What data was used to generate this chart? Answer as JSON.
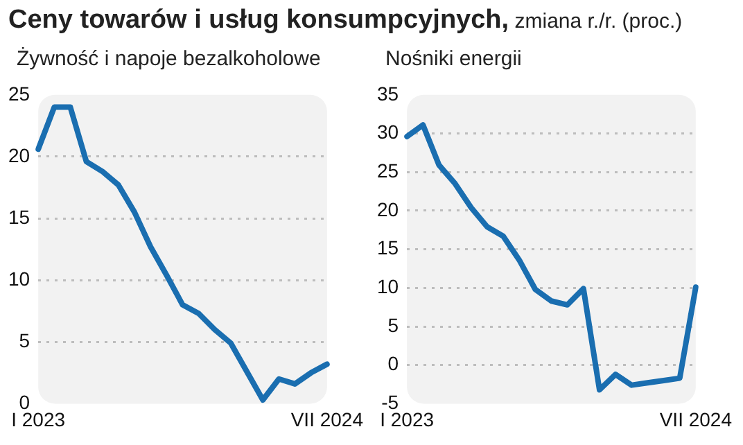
{
  "chart_data": [
    {
      "type": "line",
      "title": "Ceny towarów i usług konsumpcyjnych, zmiana r./r. (proc.)",
      "categories": [
        "I 2023",
        null,
        null,
        null,
        null,
        null,
        null,
        null,
        null,
        null,
        null,
        null,
        null,
        null,
        null,
        null,
        null,
        null,
        "VII 2024"
      ],
      "series": [
        {
          "name": "Żywność i napoje bezalkoholowe",
          "color": "#1a6eb0",
          "values": [
            20.6,
            24.0,
            24.0,
            19.6,
            18.8,
            17.7,
            15.5,
            12.7,
            10.4,
            8.0,
            7.3,
            6.0,
            4.9,
            2.6,
            0.3,
            2.0,
            1.6,
            2.5,
            3.2
          ]
        }
      ],
      "ylim": [
        0,
        25
      ],
      "yticks": [
        0,
        5,
        10,
        15,
        20,
        25
      ],
      "grid": "y",
      "legend": false,
      "marker": "none",
      "line_style": "solid"
    },
    {
      "type": "line",
      "categories": [
        "I 2023",
        null,
        null,
        null,
        null,
        null,
        null,
        null,
        null,
        null,
        null,
        null,
        null,
        null,
        null,
        null,
        null,
        null,
        "VII 2024"
      ],
      "series": [
        {
          "name": "Nośniki energii",
          "color": "#1a6eb0",
          "values": [
            29.6,
            31.1,
            25.9,
            23.5,
            20.4,
            17.9,
            16.7,
            13.6,
            9.8,
            8.3,
            7.8,
            9.9,
            -3.2,
            -1.2,
            -2.6,
            -2.3,
            -2.0,
            -1.7,
            10.1
          ]
        }
      ],
      "ylim": [
        -5,
        35
      ],
      "yticks": [
        -5,
        0,
        5,
        10,
        15,
        20,
        25,
        30,
        35
      ],
      "grid": "y",
      "legend": false,
      "marker": "none",
      "line_style": "solid"
    }
  ]
}
